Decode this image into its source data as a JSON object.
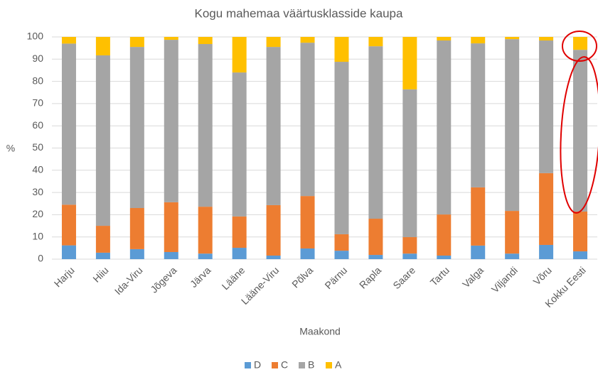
{
  "chart_data": {
    "type": "stacked_bar",
    "title": "Kogu mahemaa väärtusklasside kaupa",
    "x_label": "Maakond",
    "y_label": "%",
    "categories": [
      "Harju",
      "Hiiu",
      "Ida-Viru",
      "Jõgeva",
      "Järva",
      "Lääne",
      "Lääne-Viru",
      "Põlva",
      "Pärnu",
      "Rapla",
      "Saare",
      "Tartu",
      "Valga",
      "Viljandi",
      "Võru",
      "Kokku Eesti"
    ],
    "series": [
      {
        "name": "D",
        "color": "#5b9bd5",
        "values": [
          6.2,
          2.9,
          4.5,
          3.2,
          2.5,
          5.1,
          1.6,
          4.8,
          3.8,
          1.9,
          2.5,
          1.6,
          6.1,
          2.5,
          6.4,
          3.5
        ]
      },
      {
        "name": "C",
        "color": "#ed7d31",
        "values": [
          18.3,
          12.1,
          18.5,
          22.4,
          21.1,
          14.1,
          22.7,
          23.6,
          7.4,
          16.3,
          7.4,
          18.5,
          26.2,
          19.2,
          32.3,
          17.9
        ]
      },
      {
        "name": "B",
        "color": "#a5a5a5",
        "values": [
          72.5,
          76.7,
          72.5,
          73.1,
          73.2,
          64.8,
          71.2,
          69.0,
          77.6,
          77.6,
          66.5,
          78.3,
          64.8,
          77.3,
          59.7,
          72.8
        ]
      },
      {
        "name": "A",
        "color": "#ffc000",
        "values": [
          3.0,
          8.3,
          4.5,
          1.3,
          3.2,
          16.0,
          4.5,
          2.6,
          11.2,
          4.2,
          23.6,
          1.6,
          2.9,
          1.0,
          1.6,
          5.8
        ]
      }
    ],
    "ylim": [
      0,
      100
    ],
    "yticks": [
      0,
      10,
      20,
      30,
      40,
      50,
      60,
      70,
      80,
      90,
      100
    ],
    "grid": true,
    "legend": "bottom"
  }
}
